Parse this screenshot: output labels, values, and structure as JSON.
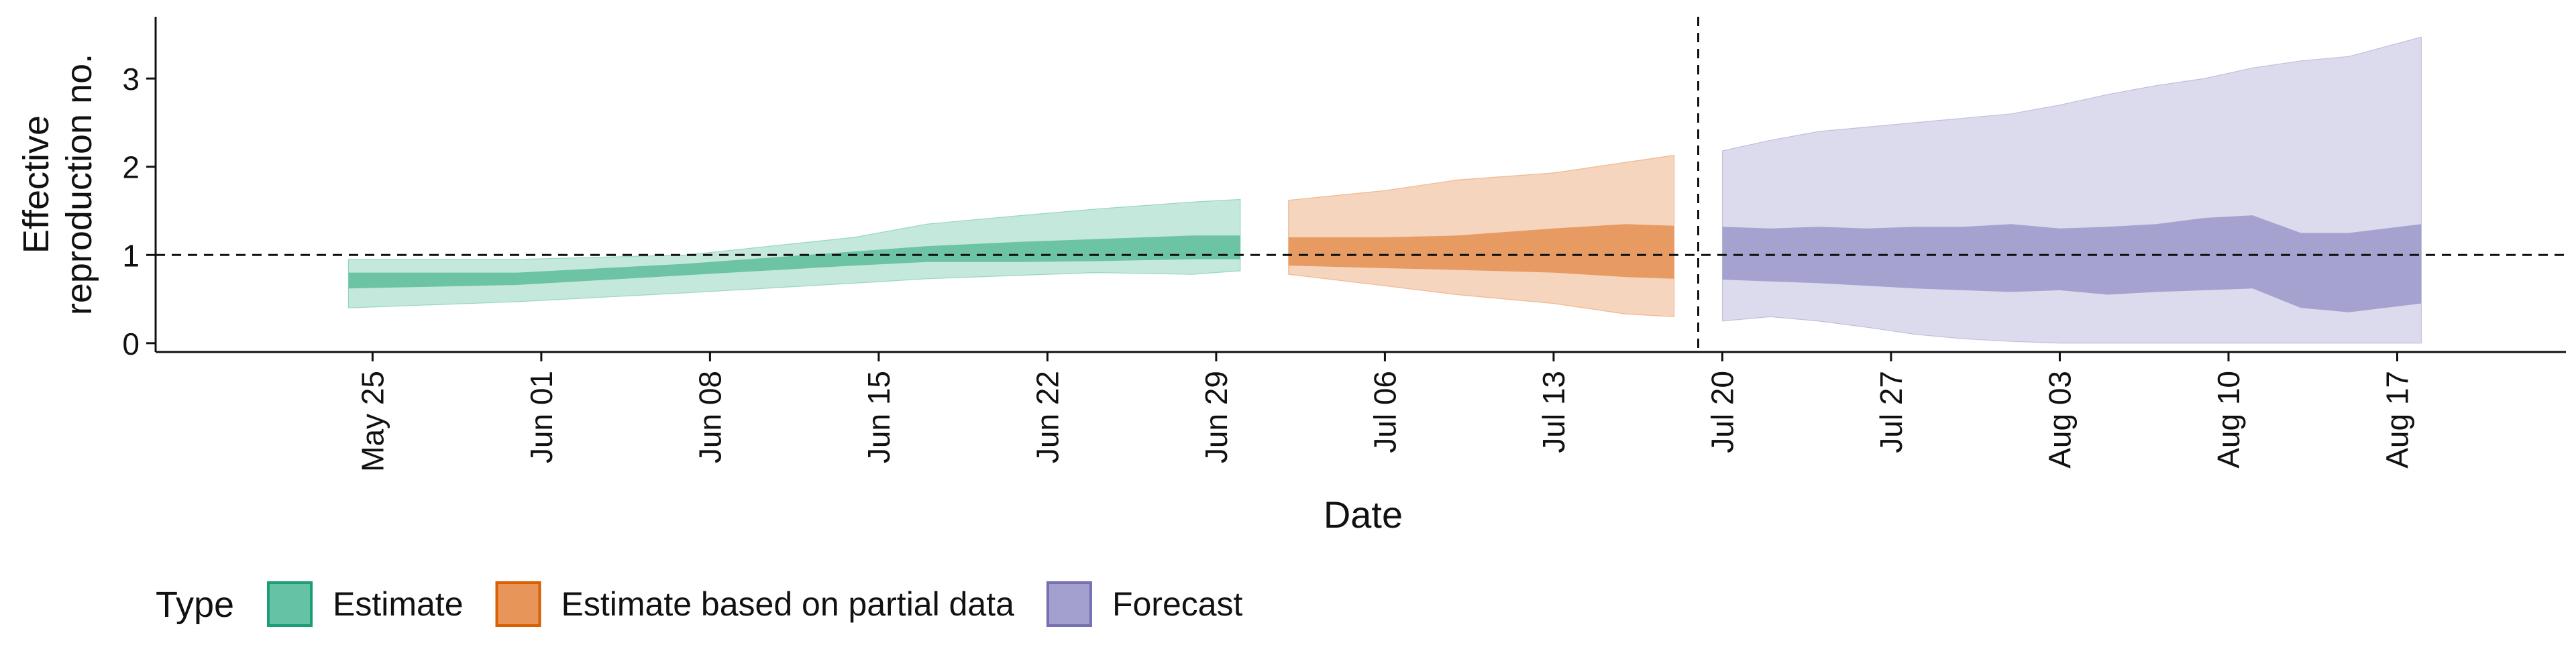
{
  "chart_data": {
    "type": "area",
    "title": "",
    "xlabel": "Date",
    "ylabel": "Effective reproduction no.",
    "ylabel_lines": [
      "Effective",
      "reproduction no."
    ],
    "x_axis": "date",
    "xlim": [
      "2020-05-16",
      "2020-08-24"
    ],
    "ylim": [
      -0.1,
      3.7
    ],
    "grid": false,
    "x_ticks": [
      "2020-05-25",
      "2020-06-01",
      "2020-06-08",
      "2020-06-15",
      "2020-06-22",
      "2020-06-29",
      "2020-07-06",
      "2020-07-13",
      "2020-07-20",
      "2020-07-27",
      "2020-08-03",
      "2020-08-10",
      "2020-08-17"
    ],
    "x_tick_labels": [
      "May 25",
      "Jun 01",
      "Jun 08",
      "Jun 15",
      "Jun 22",
      "Jun 29",
      "Jul 06",
      "Jul 13",
      "Jul 20",
      "Jul 27",
      "Aug 03",
      "Aug 10",
      "Aug 17"
    ],
    "y_ticks": [
      0,
      1,
      2,
      3
    ],
    "y_tick_labels": [
      "0",
      "1",
      "2",
      "3"
    ],
    "reference_lines": [
      {
        "axis": "y",
        "value": 1,
        "style": "dashed"
      },
      {
        "axis": "x",
        "value": "2020-07-19",
        "style": "dashed"
      }
    ],
    "legend": {
      "title": "Type",
      "position": "bottom-left",
      "entries": [
        {
          "label": "Estimate",
          "fill": "#66c2a5",
          "border": "#1b9e77"
        },
        {
          "label": "Estimate based on partial data",
          "fill": "#e8955a",
          "border": "#d95f02"
        },
        {
          "label": "Forecast",
          "fill": "#a39fcf",
          "border": "#7570b3"
        }
      ]
    },
    "series": [
      {
        "name": "Estimate",
        "colors": {
          "outer": "#c5e8dc",
          "inner": "#6cc4a4"
        },
        "x": [
          "2020-05-24",
          "2020-05-31",
          "2020-06-07",
          "2020-06-14",
          "2020-06-17",
          "2020-06-21",
          "2020-06-24",
          "2020-06-28",
          "2020-06-30"
        ],
        "outer_lower": [
          0.4,
          0.47,
          0.57,
          0.68,
          0.73,
          0.77,
          0.8,
          0.78,
          0.82
        ],
        "outer_upper": [
          0.95,
          0.95,
          1.0,
          1.2,
          1.35,
          1.45,
          1.52,
          1.6,
          1.63
        ],
        "inner_lower": [
          0.62,
          0.66,
          0.77,
          0.88,
          0.92,
          0.92,
          0.93,
          0.95,
          0.95
        ],
        "inner_upper": [
          0.8,
          0.8,
          0.9,
          1.04,
          1.1,
          1.15,
          1.18,
          1.22,
          1.22
        ]
      },
      {
        "name": "Estimate based on partial data",
        "colors": {
          "outer": "#f5d5bd",
          "inner": "#e89a63"
        },
        "x": [
          "2020-07-02",
          "2020-07-06",
          "2020-07-09",
          "2020-07-13",
          "2020-07-16",
          "2020-07-18"
        ],
        "outer_lower": [
          0.78,
          0.65,
          0.55,
          0.45,
          0.33,
          0.3
        ],
        "outer_upper": [
          1.62,
          1.73,
          1.85,
          1.93,
          2.05,
          2.13
        ],
        "inner_lower": [
          0.88,
          0.85,
          0.83,
          0.8,
          0.75,
          0.73
        ],
        "inner_upper": [
          1.2,
          1.2,
          1.22,
          1.3,
          1.35,
          1.33
        ]
      },
      {
        "name": "Forecast",
        "colors": {
          "outer": "#dcdbee",
          "inner": "#a5a2d0"
        },
        "x": [
          "2020-07-20",
          "2020-07-22",
          "2020-07-24",
          "2020-07-26",
          "2020-07-28",
          "2020-07-30",
          "2020-08-01",
          "2020-08-03",
          "2020-08-05",
          "2020-08-07",
          "2020-08-09",
          "2020-08-11",
          "2020-08-13",
          "2020-08-15",
          "2020-08-18"
        ],
        "outer_lower": [
          0.25,
          0.3,
          0.25,
          0.18,
          0.1,
          0.05,
          0.02,
          0.0,
          0.0,
          0.0,
          0.0,
          0.0,
          0.0,
          0.0,
          0.0
        ],
        "outer_upper": [
          2.18,
          2.3,
          2.4,
          2.45,
          2.5,
          2.55,
          2.6,
          2.7,
          2.82,
          2.92,
          3.0,
          3.12,
          3.2,
          3.25,
          3.47
        ],
        "inner_lower": [
          0.72,
          0.7,
          0.68,
          0.65,
          0.62,
          0.6,
          0.58,
          0.6,
          0.55,
          0.58,
          0.6,
          0.62,
          0.4,
          0.35,
          0.45
        ],
        "inner_upper": [
          1.32,
          1.3,
          1.32,
          1.3,
          1.32,
          1.32,
          1.35,
          1.3,
          1.32,
          1.35,
          1.42,
          1.45,
          1.25,
          1.25,
          1.35
        ]
      }
    ]
  }
}
